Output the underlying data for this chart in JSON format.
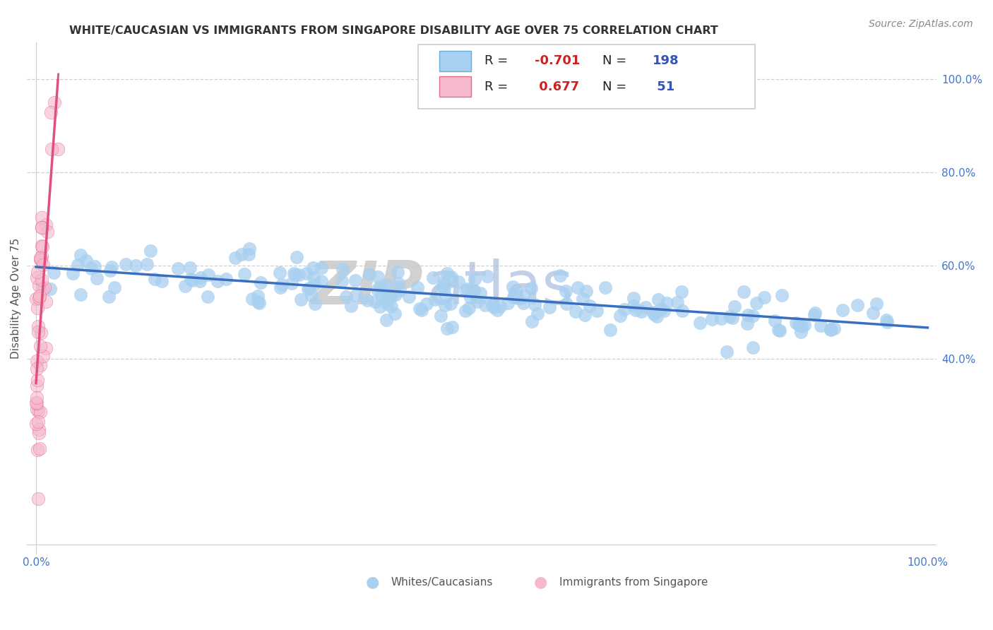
{
  "title": "WHITE/CAUCASIAN VS IMMIGRANTS FROM SINGAPORE DISABILITY AGE OVER 75 CORRELATION CHART",
  "source": "Source: ZipAtlas.com",
  "ylabel": "Disability Age Over 75",
  "xlim": [
    -0.01,
    1.01
  ],
  "ylim": [
    -0.02,
    1.08
  ],
  "blue_R": -0.701,
  "blue_N": 198,
  "pink_R": 0.677,
  "pink_N": 51,
  "blue_color": "#a8d0f0",
  "blue_line_color": "#3a6fbf",
  "pink_color": "#f5b8cc",
  "pink_line_color": "#e0507a",
  "watermark_ZIP": "ZIP",
  "watermark_atlas": "atlas",
  "legend_blue_label": "Whites/Caucasians",
  "legend_pink_label": "Immigrants from Singapore",
  "grid_color": "#d0d0d0",
  "title_color": "#333333",
  "tick_color": "#4477cc",
  "y_ticks": [
    0.4,
    0.6,
    0.8,
    1.0
  ],
  "y_tick_labels": [
    "40.0%",
    "60.0%",
    "80.0%",
    "100.0%"
  ],
  "x_tick_labels_left": "0.0%",
  "x_tick_labels_right": "100.0%"
}
